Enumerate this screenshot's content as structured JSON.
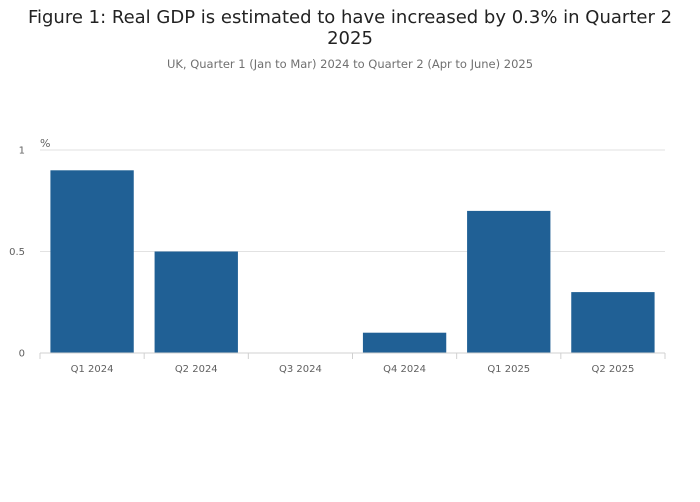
{
  "chart_data": {
    "type": "bar",
    "title": "Figure 1: Real GDP is estimated to have increased by 0.3% in Quarter 2 2025",
    "subtitle": "UK, Quarter 1 (Jan to Mar) 2024 to Quarter 2 (Apr to June) 2025",
    "ylabel": "%",
    "categories": [
      "Q1 2024",
      "Q2 2024",
      "Q3 2024",
      "Q4 2024",
      "Q1 2025",
      "Q2 2025"
    ],
    "values": [
      0.9,
      0.5,
      0.0,
      0.1,
      0.7,
      0.3
    ],
    "ylim": [
      0,
      1
    ],
    "yticks": [
      0,
      0.5,
      1
    ],
    "ytick_labels": [
      "0",
      "0.5",
      "1"
    ],
    "grid": true,
    "colors": {
      "bar": "#206095",
      "grid": "#e2e2e2",
      "axis": "#d0d0d0"
    }
  }
}
